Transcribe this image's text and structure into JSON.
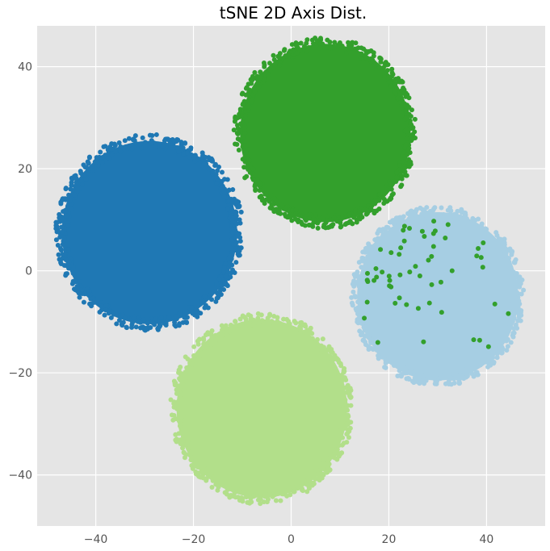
{
  "chart_data": {
    "type": "scatter",
    "title": "tSNE 2D Axis Dist.",
    "xlabel": "",
    "ylabel": "",
    "xlim": [
      -52,
      52
    ],
    "ylim": [
      -50,
      48
    ],
    "xticks": [
      -40,
      -20,
      0,
      20,
      40
    ],
    "yticks": [
      -40,
      -20,
      0,
      20,
      40
    ],
    "xtick_labels": [
      "−40",
      "−20",
      "0",
      "20",
      "40"
    ],
    "ytick_labels": [
      "−40",
      "−20",
      "0",
      "20",
      "40"
    ],
    "grid": true,
    "legend": "none",
    "series": [
      {
        "color": "#a6cee3",
        "center": [
          30,
          -5
        ],
        "radius": 17
      },
      {
        "color": "#b2df8a",
        "center": [
          -6,
          -27
        ],
        "radius": 18
      },
      {
        "color": "#1f78b4",
        "center": [
          -29,
          7.5
        ],
        "radius": 18.5
      },
      {
        "color": "#33a02c",
        "center": [
          7,
          27
        ],
        "radius": 18
      }
    ]
  }
}
